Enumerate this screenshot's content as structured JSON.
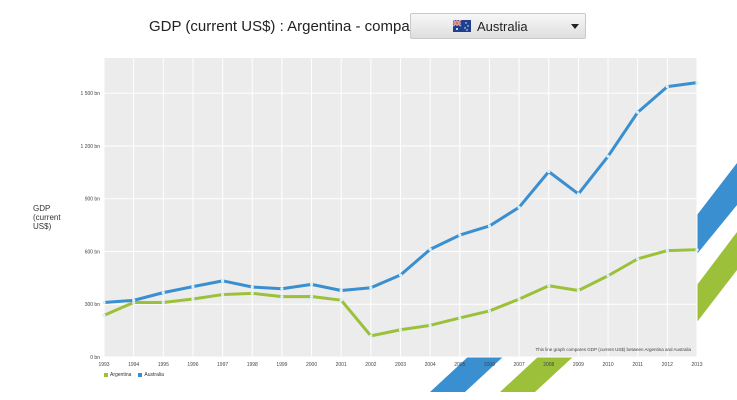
{
  "header": {
    "title": "GDP (current US$) : Argentina - compare with",
    "compare_select": {
      "value": "Australia",
      "icon": "australia-flag-icon"
    }
  },
  "colors": {
    "argentina": "#9cc03a",
    "australia": "#3a8fd0",
    "plot_bg": "#ececec",
    "grid": "#ffffff",
    "marker": "#d8f2ff"
  },
  "chart_data": {
    "type": "line",
    "ylabel": "GDP (current US$)",
    "ylim": [
      0,
      1700
    ],
    "y_ticks": [
      {
        "value": 0,
        "label": "0 bn"
      },
      {
        "value": 300,
        "label": "300 bn"
      },
      {
        "value": 600,
        "label": "600 bn"
      },
      {
        "value": 900,
        "label": "900 bn"
      },
      {
        "value": 1200,
        "label": "1 200 bn"
      },
      {
        "value": 1500,
        "label": "1 500 bn"
      }
    ],
    "grid": true,
    "legend_position": "bottom-left",
    "annotation": "This line graph compares GDP (current US$) between Argentina and Australia",
    "x": [
      "1993",
      "1994",
      "1995",
      "1996",
      "1997",
      "1998",
      "1999",
      "2000",
      "2001",
      "2002",
      "2003",
      "2004",
      "2005",
      "2006",
      "2007",
      "2008",
      "2009",
      "2010",
      "2011",
      "2012",
      "2013"
    ],
    "series": [
      {
        "name": "Argentina",
        "color_key": "argentina",
        "values": [
          237,
          310,
          310,
          330,
          355,
          362,
          343,
          344,
          323,
          120,
          155,
          180,
          222,
          262,
          329,
          405,
          378,
          462,
          558,
          605,
          610
        ]
      },
      {
        "name": "Australia",
        "color_key": "australia",
        "values": [
          310,
          322,
          366,
          400,
          433,
          398,
          388,
          413,
          378,
          394,
          466,
          612,
          693,
          745,
          851,
          1054,
          927,
          1141,
          1391,
          1537,
          1560
        ]
      }
    ]
  }
}
